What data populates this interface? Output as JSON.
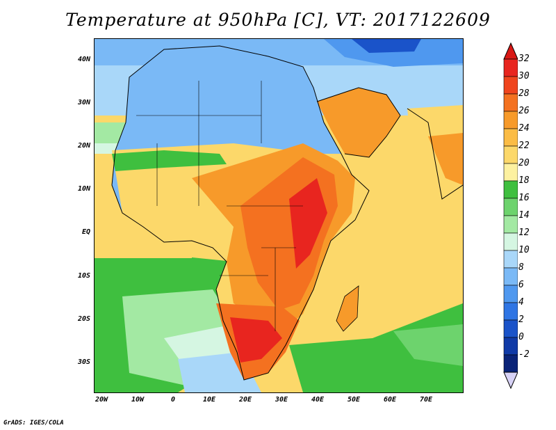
{
  "title": "Temperature at 950hPa [C], VT: 2017122609",
  "footer": "GrADS: IGES/COLA",
  "axes": {
    "y_labels": [
      "40N",
      "30N",
      "20N",
      "10N",
      "EQ",
      "10S",
      "20S",
      "30S"
    ],
    "x_labels": [
      "20W",
      "10W",
      "0",
      "10E",
      "20E",
      "30E",
      "40E",
      "50E",
      "60E",
      "70E"
    ]
  },
  "colorbar": {
    "labels": [
      "32",
      "30",
      "28",
      "26",
      "24",
      "22",
      "20",
      "18",
      "16",
      "14",
      "12",
      "10",
      "8",
      "6",
      "4",
      "2",
      "0",
      "-2"
    ],
    "colors": [
      "#e8251f",
      "#f0441d",
      "#f47120",
      "#f79a2a",
      "#fbbc45",
      "#fcd86a",
      "#fdf1a0",
      "#3fbf3f",
      "#6dd36d",
      "#a3e9a3",
      "#d5f6e2",
      "#a9d7f9",
      "#7ab9f6",
      "#4f98ef",
      "#2f75e4",
      "#1a53c9",
      "#103aa7",
      "#0a2378"
    ],
    "over_color": "#d91815",
    "under_color": "#d7d2f6"
  },
  "map": {
    "ocean_base": "#fcd86a",
    "north_cool": "#7ab9f6",
    "africa_core": "#f47120",
    "africa_hot": "#e8251f"
  }
}
